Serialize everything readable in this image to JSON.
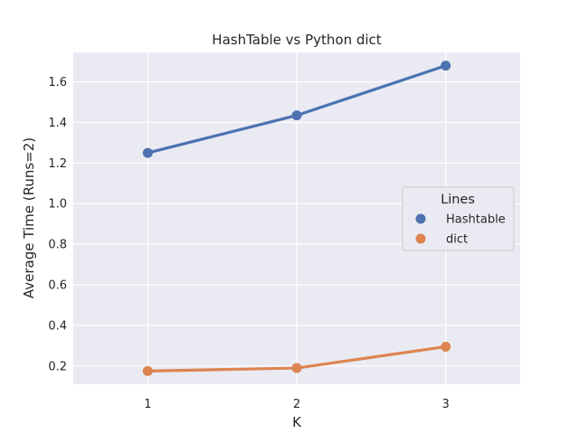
{
  "chart_data": {
    "type": "line",
    "title": "HashTable vs Python dict",
    "xlabel": "K",
    "ylabel": "Average Time (Runs=2)",
    "categories": [
      "1",
      "2",
      "3"
    ],
    "ylim": [
      0.11,
      1.745
    ],
    "yticks": [
      "0.2",
      "0.4",
      "0.6",
      "0.8",
      "1.0",
      "1.2",
      "1.4",
      "1.6"
    ],
    "grid": true,
    "legend": {
      "title": "Lines",
      "placement": "center-right"
    },
    "series": [
      {
        "name": "Hashtable",
        "values": [
          1.25,
          1.435,
          1.68
        ],
        "color": "#4c72b0"
      },
      {
        "name": "dict",
        "values": [
          0.175,
          0.19,
          0.295
        ],
        "color": "#dd8452"
      }
    ]
  }
}
